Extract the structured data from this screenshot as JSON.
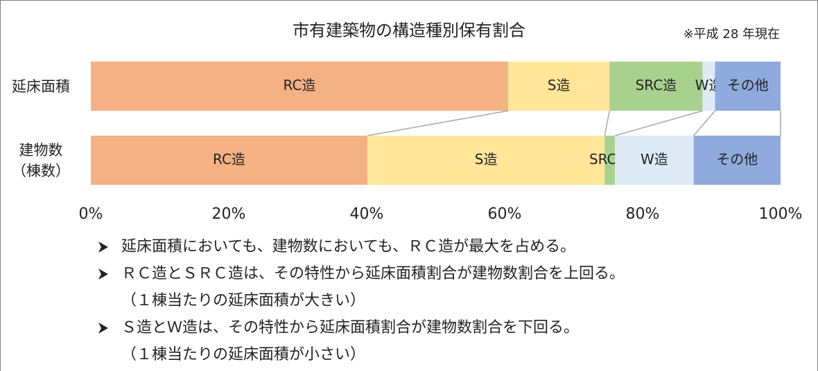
{
  "chart_data": {
    "type": "bar",
    "orientation": "horizontal",
    "stacked": true,
    "title": "市有建築物の構造種別保有割合",
    "note": "※平成 28 年現在",
    "categories": [
      "延床面積",
      "建物数\n（棟数）"
    ],
    "series": [
      {
        "name": "RC造",
        "color": "#f4b183",
        "values": [
          60.5,
          40.1
        ]
      },
      {
        "name": "S造",
        "color": "#ffe699",
        "values": [
          14.7,
          34.4
        ]
      },
      {
        "name": "SRC造",
        "color": "#a9d18e",
        "values": [
          13.5,
          1.5
        ]
      },
      {
        "name": "W造",
        "color": "#deebf7",
        "values": [
          1.8,
          11.4
        ]
      },
      {
        "name": "その他",
        "color": "#8faadc",
        "values": [
          9.5,
          12.6
        ]
      }
    ],
    "xlim": [
      0,
      100
    ],
    "xticks": [
      {
        "value": 0,
        "label": "0%"
      },
      {
        "value": 20,
        "label": "20%"
      },
      {
        "value": 40,
        "label": "40%"
      },
      {
        "value": 60,
        "label": "60%"
      },
      {
        "value": 80,
        "label": "80%"
      },
      {
        "value": 100,
        "label": "100%"
      }
    ]
  },
  "notes": [
    {
      "text": "延床面積においても、建物数においても、ＲＣ造が最大を占める。"
    },
    {
      "text": "ＲＣ造とＳＲＣ造は、その特性から延床面積割合が建物数割合を上回る。",
      "sub": "（１棟当たりの延床面積が大きい）"
    },
    {
      "text": "Ｓ造とＷ造は、その特性から延床面積割合が建物数割合を下回る。",
      "sub": "（１棟当たりの延床面積が小さい）"
    }
  ]
}
